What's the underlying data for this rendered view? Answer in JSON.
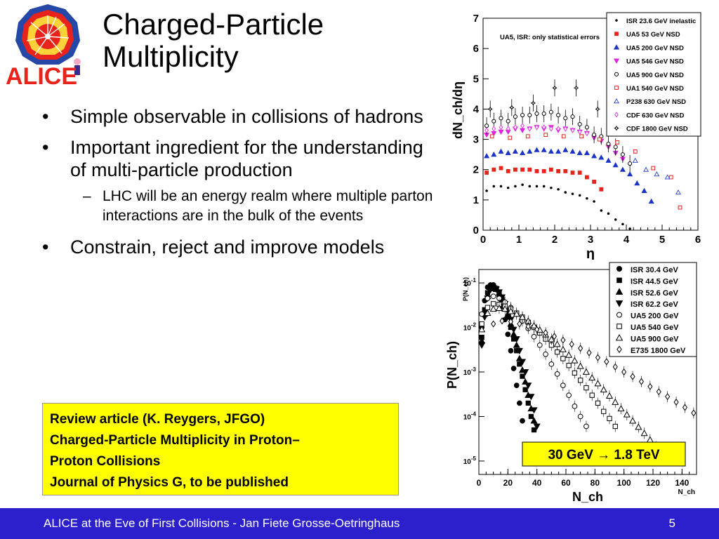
{
  "slide": {
    "logo_text": "ALICE",
    "title_lines": [
      "Charged-Particle",
      "Multiplicity"
    ],
    "bullets": [
      "Simple observable in collisions of hadrons",
      "Important ingredient for the understanding of multi-particle production"
    ],
    "sub_bullet": "LHC will be an energy realm where multiple parton interactions are in the bulk of the events",
    "bullet3": "Constrain, reject and improve models",
    "review_lines": [
      "Review article (K. Reygers, JFGO)",
      "Charged-Particle Multiplicity in Proton–",
      "Proton Collisions",
      "Journal of Physics G, to be published"
    ],
    "footer_text": "ALICE at the Eve of First Collisions  - Jan Fiete Grosse-Oetringhaus",
    "page_number": "5"
  },
  "colors": {
    "footer_bg": "#2b20cc",
    "review_bg": "#ffff00",
    "logo_red": "#e8231b",
    "logo_blue": "#2548a8"
  },
  "chart_data": [
    {
      "type": "scatter",
      "annotation": "UA5, ISR: only statistical errors",
      "xlabel": "η",
      "ylabel": "dN_ch/dη",
      "xlim": [
        0,
        6
      ],
      "ylim": [
        0,
        7
      ],
      "x_ticks": [
        "0",
        "1",
        "2",
        "3",
        "4",
        "5",
        "6"
      ],
      "y_ticks": [
        "0",
        "1",
        "2",
        "3",
        "4",
        "5",
        "6",
        "7"
      ],
      "legend_position": "top-right",
      "series": [
        {
          "name": "ISR 23.6 GeV inelastic",
          "color": "#000000",
          "marker": "dot",
          "x": [
            0.1,
            0.3,
            0.5,
            0.7,
            0.9,
            1.1,
            1.3,
            1.5,
            1.7,
            1.9,
            2.1,
            2.3,
            2.5,
            2.7,
            2.9,
            3.1,
            3.3,
            3.5,
            3.7,
            3.9,
            4.1
          ],
          "y": [
            1.3,
            1.45,
            1.45,
            1.4,
            1.45,
            1.5,
            1.45,
            1.45,
            1.45,
            1.4,
            1.35,
            1.25,
            1.2,
            1.15,
            1.05,
            0.95,
            0.65,
            0.55,
            0.35,
            0.2,
            0.05
          ]
        },
        {
          "name": "UA5 53 GeV NSD",
          "color": "#e8231b",
          "marker": "square",
          "x": [
            0.1,
            0.3,
            0.5,
            0.7,
            0.9,
            1.1,
            1.3,
            1.5,
            1.7,
            1.9,
            2.1,
            2.3,
            2.5,
            2.7,
            2.9,
            3.1,
            3.3
          ],
          "y": [
            1.9,
            2.0,
            2.05,
            1.95,
            2.0,
            2.0,
            2.0,
            1.95,
            1.95,
            2.0,
            1.95,
            1.95,
            1.9,
            1.9,
            1.75,
            1.6,
            1.35
          ]
        },
        {
          "name": "UA5 200 GeV NSD",
          "color": "#1a34c8",
          "marker": "triangle-up",
          "x": [
            0.1,
            0.3,
            0.5,
            0.7,
            0.9,
            1.1,
            1.3,
            1.5,
            1.7,
            1.9,
            2.1,
            2.3,
            2.5,
            2.7,
            2.9,
            3.1,
            3.3,
            3.5,
            3.7,
            3.9,
            4.1,
            4.3,
            4.5,
            4.7
          ],
          "y": [
            2.45,
            2.5,
            2.6,
            2.55,
            2.6,
            2.55,
            2.6,
            2.65,
            2.65,
            2.6,
            2.6,
            2.65,
            2.6,
            2.55,
            2.55,
            2.45,
            2.4,
            2.3,
            2.15,
            2.0,
            1.85,
            1.55,
            1.3,
            0.95
          ]
        },
        {
          "name": "UA5 546 GeV NSD",
          "color": "#e020e0",
          "marker": "triangle-down",
          "x": [
            0.1,
            0.3,
            0.5,
            0.7,
            0.9,
            1.1,
            1.3,
            1.5,
            1.7,
            1.9,
            2.1,
            2.3,
            2.5,
            2.7,
            2.9,
            3.1,
            3.3,
            3.5,
            3.7,
            3.9
          ],
          "y": [
            3.15,
            3.2,
            3.25,
            3.25,
            3.35,
            3.3,
            3.35,
            3.4,
            3.35,
            3.4,
            3.3,
            3.35,
            3.3,
            3.25,
            3.2,
            3.05,
            2.95,
            2.75,
            2.55,
            2.35
          ]
        },
        {
          "name": "UA5 900 GeV NSD",
          "color": "#000000",
          "marker": "circle-open",
          "x": [
            0.1,
            0.3,
            0.5,
            0.7,
            0.9,
            1.1,
            1.3,
            1.5,
            1.7,
            1.9,
            2.1,
            2.3,
            2.5,
            2.7,
            2.9,
            3.1,
            3.3,
            3.5,
            3.7,
            3.9,
            4.1
          ],
          "y": [
            3.45,
            3.6,
            3.7,
            3.6,
            3.75,
            3.8,
            3.8,
            3.85,
            3.85,
            3.9,
            3.8,
            3.7,
            3.75,
            3.5,
            3.4,
            3.15,
            3.1,
            2.85,
            2.75,
            2.5,
            2.2
          ]
        },
        {
          "name": "UA1 540 GeV NSD",
          "color": "#e8231b",
          "marker": "square-open",
          "x": [
            0.25,
            0.75,
            1.25,
            1.75,
            2.25,
            2.75,
            3.25,
            3.75,
            4.25,
            4.75,
            5.25,
            5.5
          ],
          "y": [
            3.1,
            3.05,
            3.1,
            3.15,
            3.1,
            3.1,
            3.0,
            2.9,
            2.6,
            2.05,
            1.75,
            0.75
          ]
        },
        {
          "name": "P238 630 GeV NSD",
          "color": "#3a4fd8",
          "marker": "triangle-open",
          "x": [
            4.25,
            4.55,
            4.85,
            5.15,
            5.45
          ],
          "y": [
            2.3,
            2.0,
            1.85,
            1.75,
            1.25
          ]
        },
        {
          "name": "CDF 630 GeV NSD",
          "color": "#e040e0",
          "marker": "diamond-open",
          "x": [
            0.1,
            0.3,
            0.5,
            0.7,
            0.9,
            1.1,
            1.3,
            1.5,
            1.7,
            1.9,
            2.1,
            2.3,
            2.5,
            2.7,
            2.9
          ],
          "y": [
            3.3,
            3.35,
            3.4,
            3.35,
            3.4,
            3.45,
            3.35,
            3.4,
            3.4,
            3.35,
            3.35,
            3.35,
            3.3,
            3.25,
            3.2
          ]
        },
        {
          "name": "CDF 1800 GeV NSD",
          "color": "#000000",
          "marker": "cross-open",
          "x": [
            0.2,
            0.8,
            1.4,
            2.0,
            2.6,
            3.2
          ],
          "y": [
            4.0,
            4.05,
            4.2,
            4.7,
            4.7,
            4.0
          ]
        }
      ]
    },
    {
      "type": "scatter",
      "xlabel": "N_ch",
      "ylabel": "P(N_ch)",
      "x_axis_label_small": "N_ch",
      "y_axis_label_small": "P(N_ch)",
      "yscale": "log",
      "xlim": [
        0,
        150
      ],
      "ylim": [
        5e-06,
        0.2
      ],
      "x_ticks": [
        "0",
        "20",
        "40",
        "60",
        "80",
        "100",
        "120",
        "140"
      ],
      "y_ticks": [
        "10^-5",
        "10^-4",
        "10^-3",
        "10^-2",
        "10^-1"
      ],
      "annotation": "30 GeV → 1.8 TeV",
      "legend_position": "top-right",
      "series": [
        {
          "name": "ISR 30.4 GeV",
          "marker": "circle-filled",
          "x": [
            2,
            4,
            6,
            8,
            10,
            12,
            14,
            16,
            18,
            20,
            22,
            24,
            26,
            28,
            30
          ],
          "y": [
            0.01,
            0.04,
            0.08,
            0.09,
            0.09,
            0.075,
            0.05,
            0.03,
            0.015,
            0.007,
            0.003,
            0.0012,
            0.0005,
            0.0002,
            8e-05
          ]
        },
        {
          "name": "ISR 44.5 GeV",
          "marker": "square-filled",
          "x": [
            2,
            4,
            6,
            8,
            10,
            12,
            14,
            16,
            18,
            20,
            22,
            24,
            26,
            28,
            30,
            32,
            34,
            36,
            38
          ],
          "y": [
            0.006,
            0.025,
            0.06,
            0.08,
            0.085,
            0.075,
            0.06,
            0.042,
            0.028,
            0.017,
            0.01,
            0.0055,
            0.003,
            0.0015,
            0.0008,
            0.0004,
            0.0002,
            0.0001,
            5e-05
          ]
        },
        {
          "name": "ISR 52.6 GeV",
          "marker": "triangle-up-filled",
          "x": [
            2,
            4,
            6,
            8,
            10,
            12,
            14,
            16,
            18,
            20,
            22,
            24,
            26,
            28,
            30,
            32,
            34,
            36,
            38
          ],
          "y": [
            0.005,
            0.02,
            0.05,
            0.075,
            0.08,
            0.072,
            0.06,
            0.045,
            0.03,
            0.02,
            0.012,
            0.007,
            0.004,
            0.002,
            0.0011,
            0.0006,
            0.0003,
            0.00015,
            8e-05
          ]
        },
        {
          "name": "ISR 62.2 GeV",
          "marker": "triangle-down-filled",
          "x": [
            2,
            4,
            6,
            8,
            10,
            12,
            14,
            16,
            18,
            20,
            22,
            24,
            26,
            28,
            30,
            32,
            34,
            36,
            38,
            40
          ],
          "y": [
            0.004,
            0.017,
            0.045,
            0.07,
            0.078,
            0.072,
            0.062,
            0.048,
            0.034,
            0.023,
            0.015,
            0.009,
            0.0055,
            0.003,
            0.0017,
            0.001,
            0.0005,
            0.00028,
            0.00014,
            6e-05
          ]
        },
        {
          "name": "UA5 200 GeV",
          "marker": "circle-open",
          "x": [
            2,
            6,
            10,
            14,
            18,
            22,
            26,
            30,
            34,
            38,
            42,
            46,
            50,
            54,
            58,
            62,
            66,
            70,
            74
          ],
          "y": [
            0.02,
            0.045,
            0.05,
            0.045,
            0.037,
            0.028,
            0.02,
            0.014,
            0.0095,
            0.0062,
            0.004,
            0.0025,
            0.0015,
            0.0009,
            0.0005,
            0.0003,
            0.00017,
            0.0001,
            6e-05
          ]
        },
        {
          "name": "UA5 540 GeV",
          "marker": "square-open",
          "x": [
            2,
            6,
            10,
            14,
            18,
            22,
            26,
            30,
            34,
            38,
            42,
            46,
            50,
            54,
            58,
            62,
            66,
            70,
            74,
            78,
            82,
            86,
            90,
            94
          ],
          "y": [
            0.012,
            0.028,
            0.034,
            0.033,
            0.03,
            0.026,
            0.021,
            0.017,
            0.013,
            0.01,
            0.0075,
            0.0055,
            0.004,
            0.0028,
            0.002,
            0.0014,
            0.00095,
            0.00065,
            0.00044,
            0.0003,
            0.0002,
            0.00013,
            9e-05,
            6e-05
          ]
        },
        {
          "name": "UA5 900 GeV",
          "marker": "triangle-up-open",
          "x": [
            2,
            6,
            10,
            14,
            18,
            22,
            26,
            30,
            34,
            38,
            42,
            46,
            50,
            54,
            58,
            62,
            66,
            70,
            74,
            78,
            82,
            86,
            90,
            94,
            98,
            102,
            106,
            110,
            114,
            118,
            122
          ],
          "y": [
            0.009,
            0.021,
            0.026,
            0.027,
            0.026,
            0.023,
            0.02,
            0.017,
            0.014,
            0.011,
            0.0088,
            0.0069,
            0.0054,
            0.0042,
            0.0032,
            0.0024,
            0.0018,
            0.00135,
            0.001,
            0.00074,
            0.00055,
            0.0004,
            0.00029,
            0.00021,
            0.00015,
            0.00011,
            8e-05,
            5.8e-05,
            4.2e-05,
            3e-05,
            2.1e-05
          ]
        },
        {
          "name": "E735 1800 GeV",
          "marker": "diamond-open",
          "x": [
            10,
            16,
            22,
            28,
            34,
            40,
            46,
            52,
            58,
            64,
            70,
            76,
            82,
            88,
            94,
            100,
            106,
            112,
            118,
            124,
            130,
            136,
            142,
            148
          ],
          "y": [
            0.012,
            0.014,
            0.0135,
            0.012,
            0.0105,
            0.009,
            0.0076,
            0.0063,
            0.0052,
            0.0042,
            0.0034,
            0.0027,
            0.0021,
            0.0017,
            0.0013,
            0.001,
            0.00079,
            0.00061,
            0.00047,
            0.00036,
            0.00028,
            0.00021,
            0.00016,
            0.00012
          ]
        }
      ]
    }
  ]
}
